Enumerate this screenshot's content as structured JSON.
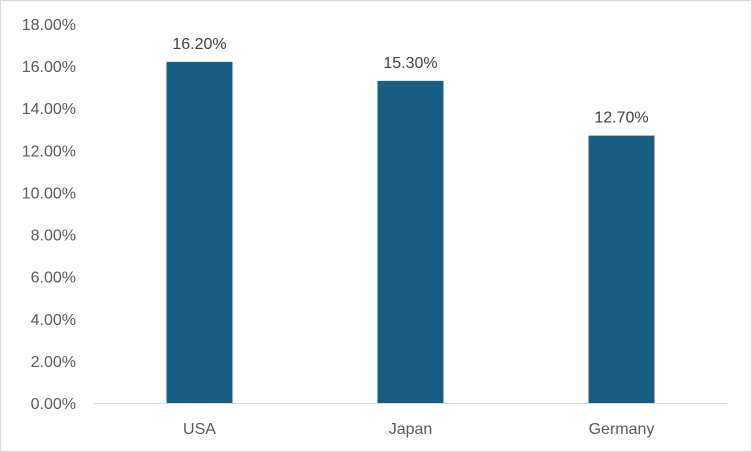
{
  "chart_data": {
    "type": "bar",
    "title": "",
    "xlabel": "",
    "ylabel": "",
    "categories": [
      "USA",
      "Japan",
      "Germany"
    ],
    "values": [
      16.2,
      15.3,
      12.7
    ],
    "data_labels": [
      "16.20%",
      "15.30%",
      "12.70%"
    ],
    "ylim": [
      0,
      18
    ],
    "y_ticks": [
      0,
      2,
      4,
      6,
      8,
      10,
      12,
      14,
      16,
      18
    ],
    "y_tick_labels": [
      "0.00%",
      "2.00%",
      "4.00%",
      "6.00%",
      "8.00%",
      "10.00%",
      "12.00%",
      "14.00%",
      "16.00%",
      "18.00%"
    ],
    "grid": false,
    "legend": "none",
    "bar_color": "#175e82",
    "axis_color": "#d9d9d9"
  }
}
